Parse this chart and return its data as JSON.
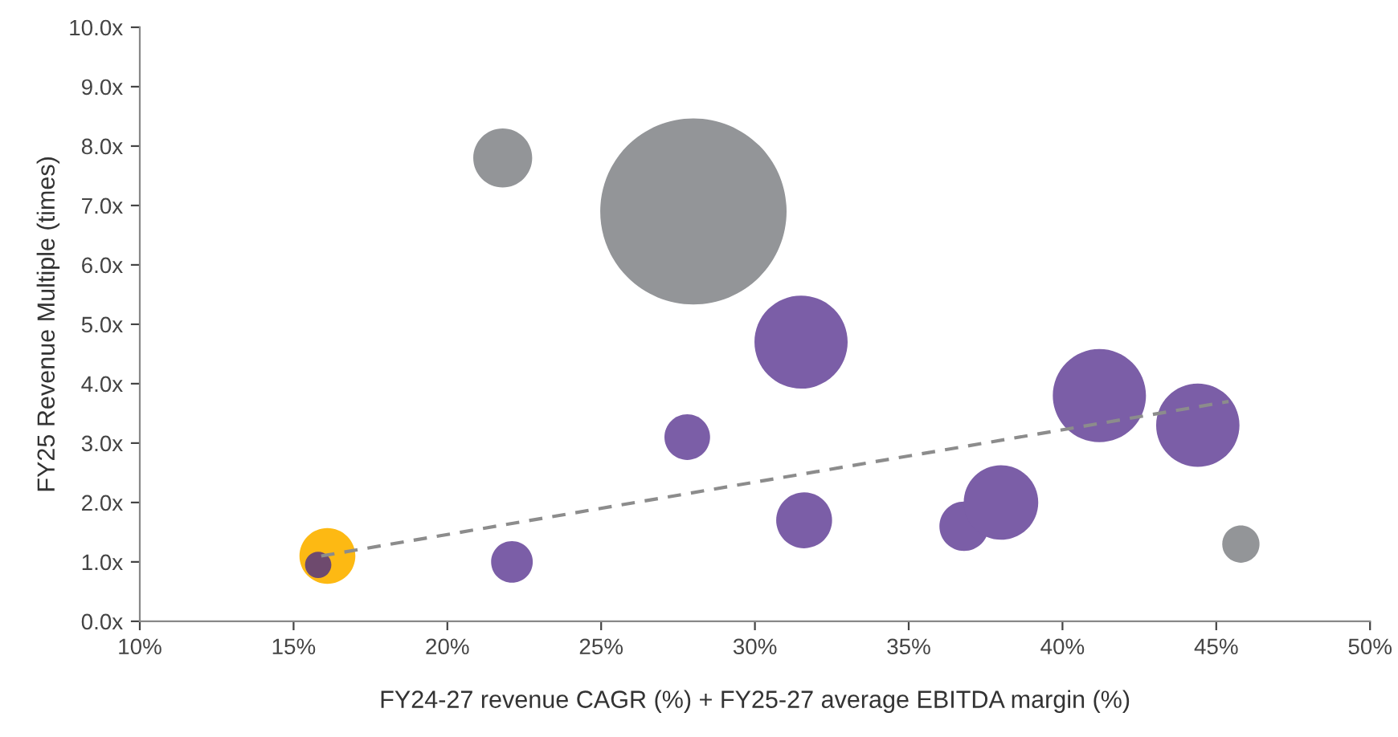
{
  "chart_data": {
    "type": "bubble",
    "xlabel": "FY24-27 revenue CAGR (%) + FY25-27 average EBITDA margin (%)",
    "ylabel": "FY25 Revenue Multiple (times)",
    "xlim": [
      10,
      50
    ],
    "xticks": [
      {
        "value": 10,
        "label": "10%"
      },
      {
        "value": 15,
        "label": "15%"
      },
      {
        "value": 20,
        "label": "20%"
      },
      {
        "value": 25,
        "label": "25%"
      },
      {
        "value": 30,
        "label": "30%"
      },
      {
        "value": 35,
        "label": "35%"
      },
      {
        "value": 40,
        "label": "40%"
      },
      {
        "value": 45,
        "label": "45%"
      },
      {
        "value": 50,
        "label": "50%"
      }
    ],
    "ylim": [
      0,
      10
    ],
    "yticks": [
      {
        "value": 0,
        "label": "0.0x"
      },
      {
        "value": 1,
        "label": "1.0x"
      },
      {
        "value": 2,
        "label": "2.0x"
      },
      {
        "value": 3,
        "label": "3.0x"
      },
      {
        "value": 4,
        "label": "4.0x"
      },
      {
        "value": 5,
        "label": "5.0x"
      },
      {
        "value": 6,
        "label": "6.0x"
      },
      {
        "value": 7,
        "label": "7.0x"
      },
      {
        "value": 8,
        "label": "8.0x"
      },
      {
        "value": 9,
        "label": "9.0x"
      },
      {
        "value": 10,
        "label": "10.0x"
      }
    ],
    "grid": false,
    "legend": false,
    "series": [
      {
        "x": [
          28.0,
          21.8,
          31.5,
          27.8,
          31.6,
          36.8,
          38.0,
          41.2,
          44.4,
          45.8,
          22.1,
          16.1,
          15.8
        ],
        "values": [
          6.9,
          7.8,
          4.7,
          3.1,
          1.7,
          1.6,
          2.0,
          3.8,
          3.3,
          1.3,
          1.0,
          1.1,
          0.95
        ],
        "sizes": [
          1,
          0.1,
          0.25,
          0.06,
          0.09,
          0.07,
          0.16,
          0.25,
          0.2,
          0.04,
          0.05,
          0.09,
          0.02
        ],
        "colors": [
          "#939598",
          "#939598",
          "#7b5ea7",
          "#7b5ea7",
          "#7b5ea7",
          "#7b5ea7",
          "#7b5ea7",
          "#7b5ea7",
          "#7b5ea7",
          "#939598",
          "#7b5ea7",
          "#fdb913",
          "#6e4a6e"
        ]
      },
      {
        "type": "line",
        "x": [
          15.9,
          45.4
        ],
        "values": [
          1.1,
          3.7
        ],
        "color": "#8c8c8c",
        "line_style": "dashed",
        "marker": "none"
      }
    ]
  }
}
